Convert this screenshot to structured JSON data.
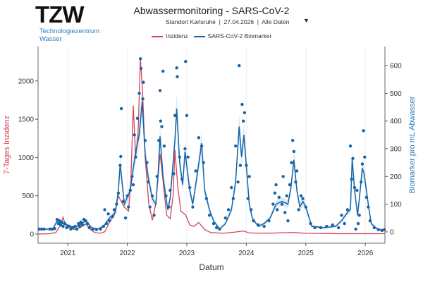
{
  "header": {
    "logo_text": "TZW",
    "logo_sub_line1": "Technologiezentrum",
    "logo_sub_line2": "Wasser",
    "title": "Abwassermonitoring - SARS-CoV-2",
    "subtitle": "Standort Karlsruhe  |  27.04.2026  |  Alle Daten",
    "dropdown_icon": "▼"
  },
  "colors": {
    "incidence": "#d6445a",
    "biomarker": "#1565a8",
    "band": "#cfe0f0",
    "ylabel_left": "#d6445a",
    "ylabel_right": "#2a7bbf"
  },
  "chart_data": {
    "type": "line",
    "xlabel": "Datum",
    "ylabel_left": "7-Tages Inzidenz",
    "ylabel_right": "Biomarker pro mL Abwasser",
    "xlim": [
      2020.5,
      2026.33
    ],
    "ylim_left": [
      -120,
      2450
    ],
    "ylim_right": [
      -41,
      669
    ],
    "x_ticks": [
      "2021",
      "2022",
      "2023",
      "2024",
      "2025",
      "2026"
    ],
    "y_ticks_left": [
      "0",
      "500",
      "1000",
      "1500",
      "2000"
    ],
    "y_ticks_right": [
      "0",
      "100",
      "200",
      "300",
      "400",
      "500",
      "600"
    ],
    "grid": "vertical",
    "legend_position": "top",
    "series": [
      {
        "name": "Inzidenz",
        "axis": "left",
        "style": "line",
        "points": [
          [
            2020.5,
            0
          ],
          [
            2020.7,
            5
          ],
          [
            2020.8,
            20
          ],
          [
            2020.88,
            120
          ],
          [
            2020.92,
            220
          ],
          [
            2020.96,
            120
          ],
          [
            2021.0,
            100
          ],
          [
            2021.1,
            60
          ],
          [
            2021.2,
            80
          ],
          [
            2021.3,
            130
          ],
          [
            2021.38,
            60
          ],
          [
            2021.45,
            20
          ],
          [
            2021.55,
            10
          ],
          [
            2021.62,
            30
          ],
          [
            2021.7,
            150
          ],
          [
            2021.78,
            250
          ],
          [
            2021.85,
            500
          ],
          [
            2021.9,
            420
          ],
          [
            2021.95,
            350
          ],
          [
            2022.02,
            300
          ],
          [
            2022.06,
            700
          ],
          [
            2022.1,
            1680
          ],
          [
            2022.14,
            1000
          ],
          [
            2022.18,
            1300
          ],
          [
            2022.22,
            2300
          ],
          [
            2022.26,
            1800
          ],
          [
            2022.3,
            1000
          ],
          [
            2022.36,
            400
          ],
          [
            2022.42,
            180
          ],
          [
            2022.48,
            400
          ],
          [
            2022.55,
            1050
          ],
          [
            2022.6,
            700
          ],
          [
            2022.66,
            250
          ],
          [
            2022.72,
            200
          ],
          [
            2022.77,
            500
          ],
          [
            2022.8,
            1100
          ],
          [
            2022.85,
            600
          ],
          [
            2022.9,
            300
          ],
          [
            2022.98,
            250
          ],
          [
            2023.05,
            120
          ],
          [
            2023.12,
            100
          ],
          [
            2023.2,
            150
          ],
          [
            2023.3,
            60
          ],
          [
            2023.4,
            20
          ],
          [
            2023.6,
            10
          ],
          [
            2023.75,
            20
          ],
          [
            2023.85,
            30
          ],
          [
            2023.95,
            40
          ],
          [
            2024.05,
            15
          ],
          [
            2024.3,
            10
          ],
          [
            2024.8,
            20
          ],
          [
            2025.0,
            10
          ],
          [
            2025.5,
            5
          ],
          [
            2026.0,
            5
          ],
          [
            2026.33,
            5
          ]
        ]
      },
      {
        "name": "SARS-CoV-2 Biomarker",
        "axis": "right",
        "style": "line",
        "points": [
          [
            2020.5,
            10
          ],
          [
            2020.75,
            10
          ],
          [
            2020.82,
            40
          ],
          [
            2020.9,
            30
          ],
          [
            2021.0,
            25
          ],
          [
            2021.1,
            15
          ],
          [
            2021.2,
            25
          ],
          [
            2021.3,
            40
          ],
          [
            2021.4,
            15
          ],
          [
            2021.5,
            10
          ],
          [
            2021.6,
            20
          ],
          [
            2021.7,
            50
          ],
          [
            2021.8,
            70
          ],
          [
            2021.85,
            150
          ],
          [
            2021.88,
            245
          ],
          [
            2021.95,
            100
          ],
          [
            2022.05,
            150
          ],
          [
            2022.1,
            230
          ],
          [
            2022.15,
            300
          ],
          [
            2022.2,
            350
          ],
          [
            2022.25,
            470
          ],
          [
            2022.3,
            280
          ],
          [
            2022.35,
            200
          ],
          [
            2022.42,
            120
          ],
          [
            2022.48,
            100
          ],
          [
            2022.52,
            220
          ],
          [
            2022.55,
            345
          ],
          [
            2022.6,
            200
          ],
          [
            2022.68,
            80
          ],
          [
            2022.72,
            120
          ],
          [
            2022.8,
            330
          ],
          [
            2022.83,
            445
          ],
          [
            2022.88,
            250
          ],
          [
            2022.93,
            170
          ],
          [
            2022.97,
            290
          ],
          [
            2023.05,
            150
          ],
          [
            2023.1,
            100
          ],
          [
            2023.17,
            200
          ],
          [
            2023.25,
            320
          ],
          [
            2023.3,
            150
          ],
          [
            2023.38,
            80
          ],
          [
            2023.45,
            40
          ],
          [
            2023.55,
            10
          ],
          [
            2023.65,
            30
          ],
          [
            2023.75,
            80
          ],
          [
            2023.82,
            180
          ],
          [
            2023.88,
            380
          ],
          [
            2023.92,
            270
          ],
          [
            2023.96,
            350
          ],
          [
            2024.0,
            240
          ],
          [
            2024.05,
            100
          ],
          [
            2024.1,
            50
          ],
          [
            2024.2,
            20
          ],
          [
            2024.3,
            30
          ],
          [
            2024.4,
            50
          ],
          [
            2024.5,
            100
          ],
          [
            2024.6,
            110
          ],
          [
            2024.7,
            100
          ],
          [
            2024.75,
            160
          ],
          [
            2024.8,
            260
          ],
          [
            2024.85,
            150
          ],
          [
            2024.9,
            90
          ],
          [
            2024.95,
            110
          ],
          [
            2025.0,
            90
          ],
          [
            2025.1,
            20
          ],
          [
            2025.3,
            15
          ],
          [
            2025.5,
            20
          ],
          [
            2025.6,
            40
          ],
          [
            2025.7,
            70
          ],
          [
            2025.75,
            80
          ],
          [
            2025.78,
            265
          ],
          [
            2025.82,
            150
          ],
          [
            2025.87,
            60
          ],
          [
            2025.9,
            120
          ],
          [
            2025.95,
            230
          ],
          [
            2025.98,
            210
          ],
          [
            2026.05,
            100
          ],
          [
            2026.1,
            30
          ],
          [
            2026.2,
            10
          ],
          [
            2026.33,
            5
          ]
        ]
      },
      {
        "name": "SARS-CoV-2 Biomarker",
        "axis": "right",
        "style": "scatter",
        "points": [
          [
            2020.52,
            10
          ],
          [
            2020.56,
            10
          ],
          [
            2020.6,
            10
          ],
          [
            2020.7,
            10
          ],
          [
            2020.74,
            10
          ],
          [
            2020.78,
            12
          ],
          [
            2020.82,
            45
          ],
          [
            2020.84,
            30
          ],
          [
            2020.86,
            40
          ],
          [
            2020.88,
            25
          ],
          [
            2020.9,
            35
          ],
          [
            2020.92,
            20
          ],
          [
            2020.95,
            30
          ],
          [
            2020.98,
            15
          ],
          [
            2021.02,
            20
          ],
          [
            2021.05,
            10
          ],
          [
            2021.08,
            15
          ],
          [
            2021.12,
            20
          ],
          [
            2021.15,
            10
          ],
          [
            2021.18,
            30
          ],
          [
            2021.2,
            20
          ],
          [
            2021.22,
            35
          ],
          [
            2021.25,
            25
          ],
          [
            2021.27,
            45
          ],
          [
            2021.3,
            40
          ],
          [
            2021.33,
            30
          ],
          [
            2021.36,
            15
          ],
          [
            2021.42,
            10
          ],
          [
            2021.48,
            8
          ],
          [
            2021.55,
            10
          ],
          [
            2021.6,
            20
          ],
          [
            2021.62,
            80
          ],
          [
            2021.65,
            30
          ],
          [
            2021.68,
            65
          ],
          [
            2021.7,
            40
          ],
          [
            2021.75,
            55
          ],
          [
            2021.78,
            80
          ],
          [
            2021.82,
            100
          ],
          [
            2021.85,
            140
          ],
          [
            2021.88,
            240
          ],
          [
            2021.89,
            272
          ],
          [
            2021.9,
            445
          ],
          [
            2021.93,
            110
          ],
          [
            2021.97,
            50
          ],
          [
            2022.0,
            130
          ],
          [
            2022.02,
            90
          ],
          [
            2022.05,
            150
          ],
          [
            2022.08,
            200
          ],
          [
            2022.1,
            170
          ],
          [
            2022.12,
            350
          ],
          [
            2022.14,
            270
          ],
          [
            2022.17,
            410
          ],
          [
            2022.2,
            500
          ],
          [
            2022.22,
            625
          ],
          [
            2022.23,
            590
          ],
          [
            2022.26,
            480
          ],
          [
            2022.27,
            540
          ],
          [
            2022.3,
            330
          ],
          [
            2022.33,
            250
          ],
          [
            2022.35,
            180
          ],
          [
            2022.38,
            90
          ],
          [
            2022.42,
            130
          ],
          [
            2022.45,
            60
          ],
          [
            2022.5,
            200
          ],
          [
            2022.53,
            330
          ],
          [
            2022.55,
            510
          ],
          [
            2022.56,
            400
          ],
          [
            2022.58,
            380
          ],
          [
            2022.6,
            580
          ],
          [
            2022.62,
            310
          ],
          [
            2022.65,
            130
          ],
          [
            2022.7,
            90
          ],
          [
            2022.72,
            150
          ],
          [
            2022.78,
            210
          ],
          [
            2022.8,
            420
          ],
          [
            2022.83,
            592
          ],
          [
            2022.84,
            560
          ],
          [
            2022.88,
            270
          ],
          [
            2022.92,
            190
          ],
          [
            2022.97,
            300
          ],
          [
            2022.98,
            615
          ],
          [
            2023.0,
            420
          ],
          [
            2023.02,
            270
          ],
          [
            2023.05,
            160
          ],
          [
            2023.1,
            90
          ],
          [
            2023.15,
            220
          ],
          [
            2023.2,
            340
          ],
          [
            2023.25,
            310
          ],
          [
            2023.28,
            250
          ],
          [
            2023.33,
            120
          ],
          [
            2023.38,
            60
          ],
          [
            2023.45,
            30
          ],
          [
            2023.5,
            15
          ],
          [
            2023.55,
            10
          ],
          [
            2023.65,
            50
          ],
          [
            2023.7,
            80
          ],
          [
            2023.75,
            160
          ],
          [
            2023.78,
            120
          ],
          [
            2023.82,
            310
          ],
          [
            2023.86,
            180
          ],
          [
            2023.88,
            600
          ],
          [
            2023.9,
            240
          ],
          [
            2023.93,
            460
          ],
          [
            2023.95,
            400
          ],
          [
            2023.97,
            430
          ],
          [
            2024.0,
            240
          ],
          [
            2024.03,
            120
          ],
          [
            2024.05,
            200
          ],
          [
            2024.08,
            80
          ],
          [
            2024.12,
            40
          ],
          [
            2024.2,
            25
          ],
          [
            2024.3,
            20
          ],
          [
            2024.38,
            40
          ],
          [
            2024.45,
            100
          ],
          [
            2024.48,
            140
          ],
          [
            2024.5,
            170
          ],
          [
            2024.52,
            80
          ],
          [
            2024.55,
            125
          ],
          [
            2024.6,
            100
          ],
          [
            2024.62,
            200
          ],
          [
            2024.65,
            70
          ],
          [
            2024.68,
            130
          ],
          [
            2024.7,
            40
          ],
          [
            2024.73,
            170
          ],
          [
            2024.76,
            250
          ],
          [
            2024.78,
            330
          ],
          [
            2024.8,
            290
          ],
          [
            2024.83,
            180
          ],
          [
            2024.85,
            220
          ],
          [
            2024.88,
            80
          ],
          [
            2024.92,
            130
          ],
          [
            2024.95,
            120
          ],
          [
            2025.0,
            90
          ],
          [
            2025.08,
            30
          ],
          [
            2025.15,
            15
          ],
          [
            2025.25,
            15
          ],
          [
            2025.35,
            20
          ],
          [
            2025.45,
            25
          ],
          [
            2025.55,
            15
          ],
          [
            2025.6,
            60
          ],
          [
            2025.65,
            30
          ],
          [
            2025.7,
            80
          ],
          [
            2025.75,
            310
          ],
          [
            2025.77,
            190
          ],
          [
            2025.79,
            265
          ],
          [
            2025.82,
            160
          ],
          [
            2025.84,
            10
          ],
          [
            2025.86,
            150
          ],
          [
            2025.88,
            30
          ],
          [
            2025.9,
            60
          ],
          [
            2025.93,
            180
          ],
          [
            2025.95,
            245
          ],
          [
            2025.97,
            365
          ],
          [
            2025.99,
            270
          ],
          [
            2026.02,
            125
          ],
          [
            2026.05,
            90
          ],
          [
            2026.08,
            40
          ],
          [
            2026.15,
            15
          ],
          [
            2026.22,
            8
          ],
          [
            2026.28,
            5
          ],
          [
            2026.32,
            8
          ]
        ]
      }
    ]
  }
}
